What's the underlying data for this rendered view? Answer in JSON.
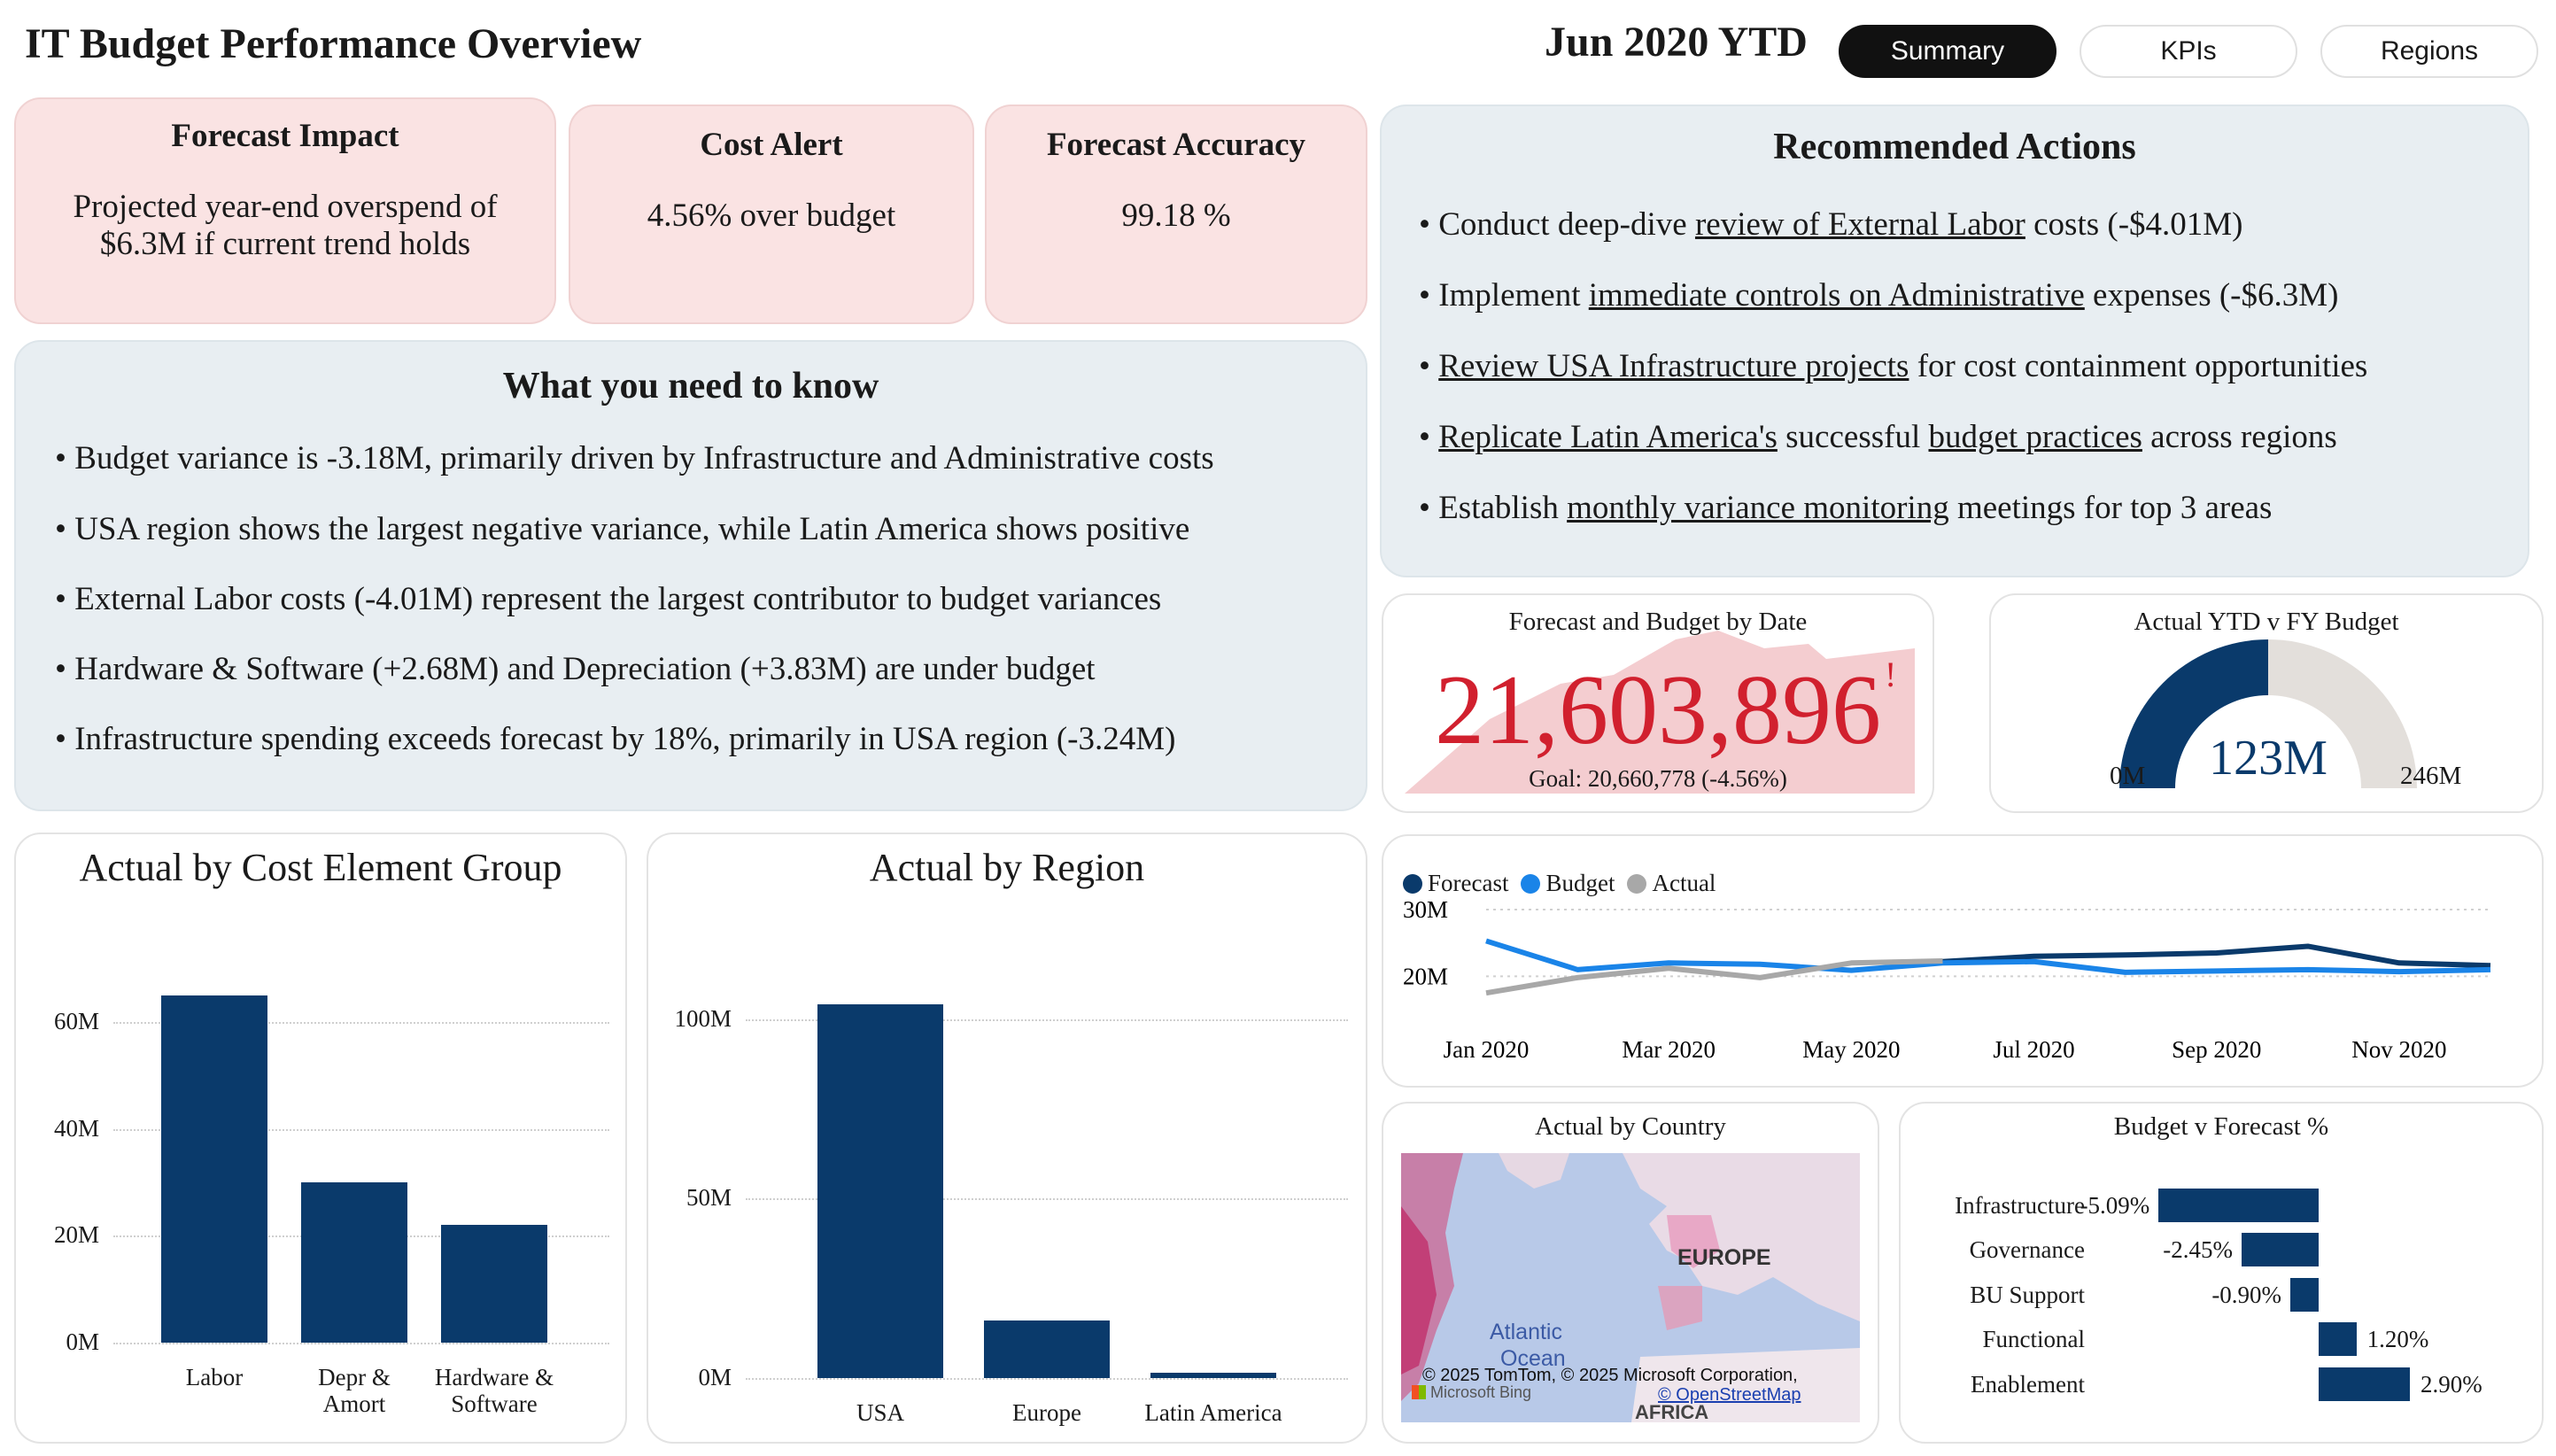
{
  "header": {
    "title": "IT Budget Performance Overview",
    "period": "Jun 2020 YTD",
    "tabs": [
      {
        "label": "Summary",
        "active": true
      },
      {
        "label": "KPIs",
        "active": false
      },
      {
        "label": "Regions",
        "active": false
      }
    ]
  },
  "kpis": {
    "forecast_impact": {
      "title": "Forecast Impact",
      "line1": "Projected year-end overspend of",
      "line2": "$6.3M if current trend holds"
    },
    "cost_alert": {
      "title": "Cost Alert",
      "value": "4.56% over budget"
    },
    "forecast_accuracy": {
      "title": "Forecast Accuracy",
      "value": "99.18 %"
    }
  },
  "recommended": {
    "title": "Recommended Actions",
    "items": [
      [
        {
          "t": "• Conduct deep-dive "
        },
        {
          "t": "review of External Labor",
          "u": true
        },
        {
          "t": " costs (-$4.01M)"
        }
      ],
      [
        {
          "t": "• Implement "
        },
        {
          "t": "immediate controls on Administrative",
          "u": true
        },
        {
          "t": " expenses (-$6.3M)"
        }
      ],
      [
        {
          "t": "• "
        },
        {
          "t": "Review USA Infrastructure projects",
          "u": true
        },
        {
          "t": " for cost containment opportunities"
        }
      ],
      [
        {
          "t": "• "
        },
        {
          "t": "Replicate Latin America's",
          "u": true
        },
        {
          "t": " successful "
        },
        {
          "t": "budget practices",
          "u": true
        },
        {
          "t": " across regions"
        }
      ],
      [
        {
          "t": "• Establish "
        },
        {
          "t": "monthly variance monitoring",
          "u": true
        },
        {
          "t": " meetings for top 3 areas"
        }
      ]
    ]
  },
  "need_to_know": {
    "title": "What you need to know",
    "items": [
      "• Budget variance is -3.18M, primarily driven by Infrastructure and Administrative costs",
      "• USA region shows the largest negative variance, while Latin America shows positive",
      "• External Labor costs (-4.01M) represent the largest contributor to budget variances",
      "•  Hardware & Software (+2.68M) and Depreciation (+3.83M) are  under budget",
      "• Infrastructure spending exceeds forecast by 18%, primarily in USA region (-3.24M)"
    ]
  },
  "forecast_card": {
    "title": "Forecast and Budget by Date",
    "value": "21,603,896",
    "alert": "!",
    "goal": "Goal: 20,660,778 (-4.56%)",
    "colors": {
      "value": "#d1202e",
      "area": "#f4cdd0"
    }
  },
  "gauge_card": {
    "title": "Actual YTD v FY Budget",
    "min_label": "0M",
    "max_label": "246M",
    "value_label": "123M",
    "fill_fraction": 0.5,
    "colors": {
      "fill": "#0a3a6b",
      "track": "#e3dfdb"
    }
  },
  "charts": {
    "cost_element": {
      "title": "Actual by Cost Element Group",
      "chart_data": {
        "type": "bar",
        "categories": [
          [
            "Labor"
          ],
          [
            "Depr &",
            "Amort"
          ],
          [
            "Hardware &",
            "Software"
          ]
        ],
        "values": [
          65,
          30,
          22
        ],
        "ylim": [
          0,
          70
        ],
        "yticks": [
          {
            "v": 0,
            "label": "0M"
          },
          {
            "v": 20,
            "label": "20M"
          },
          {
            "v": 40,
            "label": "40M"
          },
          {
            "v": 60,
            "label": "60M"
          }
        ],
        "color": "#0a3a6b"
      }
    },
    "region": {
      "title": "Actual by Region",
      "chart_data": {
        "type": "bar",
        "categories": [
          [
            "USA"
          ],
          [
            "Europe"
          ],
          [
            "Latin America"
          ]
        ],
        "values": [
          104,
          16,
          1.5
        ],
        "ylim": [
          0,
          112
        ],
        "yticks": [
          {
            "v": 0,
            "label": "0M"
          },
          {
            "v": 50,
            "label": "50M"
          },
          {
            "v": 100,
            "label": "100M"
          }
        ],
        "color": "#0a3a6b"
      }
    },
    "trend": {
      "chart_data": {
        "type": "line",
        "x": [
          "Jan 2020",
          "Feb 2020",
          "Mar 2020",
          "Apr 2020",
          "May 2020",
          "Jun 2020",
          "Jul 2020",
          "Aug 2020",
          "Sep 2020",
          "Oct 2020",
          "Nov 2020",
          "Dec 2020"
        ],
        "xtick_labels": [
          "Jan 2020",
          "Mar 2020",
          "May 2020",
          "Jul 2020",
          "Sep 2020",
          "Nov 2020"
        ],
        "ylim": [
          15,
          32
        ],
        "yticks": [
          {
            "v": 30,
            "label": "30M"
          },
          {
            "v": 20,
            "label": "20M"
          }
        ],
        "series": [
          {
            "name": "Forecast",
            "color": "#0a3a6b",
            "values": [
              null,
              null,
              null,
              null,
              null,
              22.2,
              23.0,
              23.2,
              23.5,
              24.5,
              22.0,
              21.6
            ]
          },
          {
            "name": "Budget",
            "color": "#1a84e8",
            "values": [
              25.3,
              21.0,
              22.0,
              21.8,
              20.9,
              22.0,
              22.2,
              20.6,
              20.8,
              21.0,
              20.7,
              21.0
            ]
          },
          {
            "name": "Actual",
            "color": "#a8a8a8",
            "values": [
              17.5,
              19.8,
              21.2,
              19.8,
              22.0,
              22.3,
              null,
              null,
              null,
              null,
              null,
              null
            ]
          }
        ]
      }
    },
    "budget_forecast": {
      "title": "Budget v Forecast %",
      "chart_data": {
        "type": "bar",
        "categories": [
          "Infrastructure",
          "Governance",
          "BU Support",
          "Functional",
          "Enablement"
        ],
        "values": [
          -5.09,
          -2.45,
          -0.9,
          1.2,
          2.9
        ],
        "labels": [
          "-5.09%",
          "-2.45%",
          "-0.90%",
          "1.20%",
          "2.90%"
        ],
        "xlim": [
          -5.09,
          2.9
        ],
        "color": "#0a3a6b"
      }
    }
  },
  "map": {
    "title": "Actual by Country",
    "labels": {
      "europe": "EUROPE",
      "ocean1": "Atlantic",
      "ocean2": "Ocean",
      "africa": "AFRICA"
    },
    "copyright": "© 2025 TomTom, © 2025 Microsoft Corporation,",
    "osm": "© OpenStreetMap",
    "bing": "Microsoft Bing"
  }
}
